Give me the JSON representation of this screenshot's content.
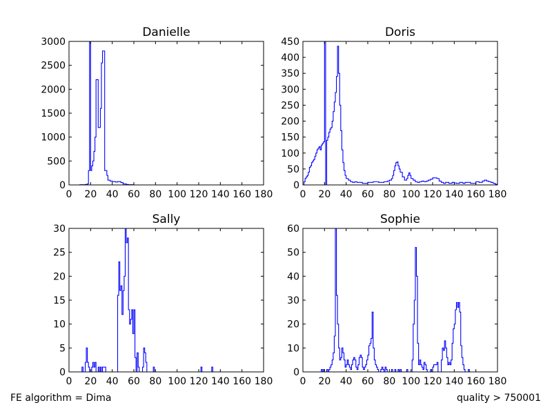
{
  "footer": {
    "left": "FE algorithm = Dima",
    "right": "quality > 750001"
  },
  "colors": {
    "series": "#0000ff",
    "axes": "#000000",
    "background": "#ffffff"
  },
  "chart_data": [
    {
      "type": "histogram",
      "title": "Danielle",
      "xlim": [
        0,
        180
      ],
      "ylim": [
        0,
        3000
      ],
      "xticks": [
        0,
        20,
        40,
        60,
        80,
        100,
        120,
        140,
        160,
        180
      ],
      "yticks": [
        0,
        500,
        1000,
        1500,
        2000,
        2500,
        3000
      ],
      "grid": false,
      "step": 1,
      "points": [
        [
          0,
          0
        ],
        [
          10,
          5
        ],
        [
          15,
          10
        ],
        [
          17,
          20
        ],
        [
          18,
          300
        ],
        [
          19,
          3000
        ],
        [
          20,
          300
        ],
        [
          21,
          400
        ],
        [
          22,
          500
        ],
        [
          23,
          700
        ],
        [
          24,
          1000
        ],
        [
          25,
          2200
        ],
        [
          26,
          2200
        ],
        [
          27,
          1200
        ],
        [
          28,
          1200
        ],
        [
          29,
          1600
        ],
        [
          30,
          2550
        ],
        [
          31,
          2800
        ],
        [
          32,
          2800
        ],
        [
          33,
          300
        ],
        [
          35,
          200
        ],
        [
          36,
          100
        ],
        [
          38,
          80
        ],
        [
          40,
          70
        ],
        [
          43,
          60
        ],
        [
          45,
          70
        ],
        [
          48,
          50
        ],
        [
          50,
          20
        ],
        [
          53,
          10
        ],
        [
          55,
          5
        ],
        [
          60,
          0
        ]
      ]
    },
    {
      "type": "histogram",
      "title": "Doris",
      "xlim": [
        0,
        180
      ],
      "ylim": [
        0,
        450
      ],
      "xticks": [
        0,
        20,
        40,
        60,
        80,
        100,
        120,
        140,
        160,
        180
      ],
      "yticks": [
        0,
        50,
        100,
        150,
        200,
        250,
        300,
        350,
        400,
        450
      ],
      "grid": false,
      "step": 1,
      "points": [
        [
          0,
          0
        ],
        [
          1,
          10
        ],
        [
          2,
          20
        ],
        [
          3,
          25
        ],
        [
          4,
          30
        ],
        [
          5,
          40
        ],
        [
          6,
          55
        ],
        [
          7,
          60
        ],
        [
          8,
          70
        ],
        [
          9,
          75
        ],
        [
          10,
          80
        ],
        [
          11,
          90
        ],
        [
          12,
          100
        ],
        [
          13,
          110
        ],
        [
          14,
          115
        ],
        [
          15,
          120
        ],
        [
          16,
          110
        ],
        [
          17,
          125
        ],
        [
          18,
          130
        ],
        [
          19,
          135
        ],
        [
          20,
          450
        ],
        [
          21,
          0
        ],
        [
          22,
          140
        ],
        [
          23,
          150
        ],
        [
          24,
          165
        ],
        [
          25,
          175
        ],
        [
          26,
          180
        ],
        [
          27,
          200
        ],
        [
          28,
          230
        ],
        [
          29,
          260
        ],
        [
          30,
          290
        ],
        [
          31,
          340
        ],
        [
          32,
          435
        ],
        [
          33,
          350
        ],
        [
          34,
          250
        ],
        [
          35,
          170
        ],
        [
          36,
          110
        ],
        [
          37,
          70
        ],
        [
          38,
          45
        ],
        [
          39,
          30
        ],
        [
          40,
          20
        ],
        [
          42,
          15
        ],
        [
          44,
          10
        ],
        [
          46,
          8
        ],
        [
          48,
          10
        ],
        [
          50,
          8
        ],
        [
          55,
          5
        ],
        [
          60,
          8
        ],
        [
          65,
          10
        ],
        [
          70,
          8
        ],
        [
          75,
          10
        ],
        [
          78,
          12
        ],
        [
          80,
          15
        ],
        [
          82,
          20
        ],
        [
          83,
          30
        ],
        [
          84,
          45
        ],
        [
          85,
          60
        ],
        [
          86,
          70
        ],
        [
          87,
          72
        ],
        [
          88,
          60
        ],
        [
          89,
          50
        ],
        [
          90,
          40
        ],
        [
          92,
          25
        ],
        [
          94,
          15
        ],
        [
          96,
          20
        ],
        [
          97,
          30
        ],
        [
          98,
          38
        ],
        [
          99,
          30
        ],
        [
          100,
          20
        ],
        [
          102,
          15
        ],
        [
          104,
          10
        ],
        [
          106,
          8
        ],
        [
          108,
          10
        ],
        [
          110,
          12
        ],
        [
          112,
          10
        ],
        [
          114,
          12
        ],
        [
          116,
          15
        ],
        [
          118,
          18
        ],
        [
          120,
          22
        ],
        [
          122,
          22
        ],
        [
          124,
          20
        ],
        [
          126,
          12
        ],
        [
          128,
          8
        ],
        [
          130,
          5
        ],
        [
          132,
          8
        ],
        [
          135,
          5
        ],
        [
          138,
          8
        ],
        [
          140,
          6
        ],
        [
          142,
          5
        ],
        [
          145,
          8
        ],
        [
          148,
          5
        ],
        [
          150,
          8
        ],
        [
          155,
          5
        ],
        [
          160,
          10
        ],
        [
          163,
          8
        ],
        [
          166,
          12
        ],
        [
          168,
          15
        ],
        [
          170,
          12
        ],
        [
          172,
          10
        ],
        [
          174,
          8
        ],
        [
          176,
          5
        ],
        [
          178,
          2
        ],
        [
          180,
          0
        ]
      ]
    },
    {
      "type": "histogram",
      "title": "Sally",
      "xlim": [
        0,
        180
      ],
      "ylim": [
        0,
        30
      ],
      "xticks": [
        0,
        20,
        40,
        60,
        80,
        100,
        120,
        140,
        160,
        180
      ],
      "yticks": [
        0,
        5,
        10,
        15,
        20,
        25,
        30
      ],
      "grid": false,
      "step": 1,
      "points": [
        [
          0,
          0
        ],
        [
          12,
          1
        ],
        [
          13,
          0
        ],
        [
          15,
          2
        ],
        [
          16,
          5
        ],
        [
          17,
          2
        ],
        [
          18,
          1
        ],
        [
          19,
          0
        ],
        [
          21,
          1
        ],
        [
          22,
          2
        ],
        [
          23,
          1
        ],
        [
          24,
          2
        ],
        [
          25,
          0
        ],
        [
          27,
          1
        ],
        [
          28,
          0
        ],
        [
          29,
          1
        ],
        [
          30,
          0
        ],
        [
          31,
          1
        ],
        [
          34,
          0
        ],
        [
          45,
          16
        ],
        [
          46,
          23
        ],
        [
          47,
          17
        ],
        [
          48,
          18
        ],
        [
          49,
          12
        ],
        [
          50,
          17
        ],
        [
          51,
          20
        ],
        [
          52,
          30
        ],
        [
          53,
          27
        ],
        [
          54,
          28
        ],
        [
          55,
          13
        ],
        [
          56,
          10
        ],
        [
          57,
          11
        ],
        [
          58,
          13
        ],
        [
          59,
          8
        ],
        [
          60,
          13
        ],
        [
          61,
          3
        ],
        [
          62,
          0
        ],
        [
          63,
          4
        ],
        [
          64,
          1
        ],
        [
          65,
          0
        ],
        [
          68,
          1
        ],
        [
          69,
          5
        ],
        [
          70,
          4
        ],
        [
          71,
          2
        ],
        [
          72,
          0
        ],
        [
          78,
          1
        ],
        [
          79,
          0
        ],
        [
          122,
          1
        ],
        [
          123,
          0
        ],
        [
          132,
          1
        ],
        [
          133,
          0
        ]
      ]
    },
    {
      "type": "histogram",
      "title": "Sophie",
      "xlim": [
        0,
        180
      ],
      "ylim": [
        0,
        60
      ],
      "xticks": [
        0,
        20,
        40,
        60,
        80,
        100,
        120,
        140,
        160,
        180
      ],
      "yticks": [
        0,
        10,
        20,
        30,
        40,
        50,
        60
      ],
      "grid": false,
      "step": 1,
      "points": [
        [
          0,
          0
        ],
        [
          17,
          1
        ],
        [
          18,
          0
        ],
        [
          19,
          1
        ],
        [
          20,
          0
        ],
        [
          22,
          1
        ],
        [
          23,
          0
        ],
        [
          24,
          1
        ],
        [
          25,
          2
        ],
        [
          26,
          3
        ],
        [
          27,
          5
        ],
        [
          28,
          8
        ],
        [
          29,
          15
        ],
        [
          30,
          60
        ],
        [
          31,
          32
        ],
        [
          32,
          20
        ],
        [
          33,
          10
        ],
        [
          34,
          5
        ],
        [
          35,
          6
        ],
        [
          36,
          10
        ],
        [
          37,
          8
        ],
        [
          38,
          5
        ],
        [
          39,
          2
        ],
        [
          40,
          3
        ],
        [
          41,
          5
        ],
        [
          42,
          3
        ],
        [
          43,
          2
        ],
        [
          44,
          1
        ],
        [
          45,
          3
        ],
        [
          46,
          5
        ],
        [
          47,
          6
        ],
        [
          48,
          5
        ],
        [
          49,
          2
        ],
        [
          50,
          1
        ],
        [
          51,
          3
        ],
        [
          52,
          6
        ],
        [
          53,
          7
        ],
        [
          54,
          6
        ],
        [
          55,
          2
        ],
        [
          56,
          1
        ],
        [
          57,
          2
        ],
        [
          58,
          3
        ],
        [
          59,
          5
        ],
        [
          60,
          7
        ],
        [
          61,
          11
        ],
        [
          62,
          12
        ],
        [
          63,
          14
        ],
        [
          64,
          25
        ],
        [
          65,
          10
        ],
        [
          66,
          5
        ],
        [
          67,
          3
        ],
        [
          68,
          2
        ],
        [
          69,
          1
        ],
        [
          70,
          0
        ],
        [
          72,
          1
        ],
        [
          73,
          2
        ],
        [
          74,
          1
        ],
        [
          75,
          0
        ],
        [
          76,
          2
        ],
        [
          77,
          1
        ],
        [
          78,
          0
        ],
        [
          82,
          1
        ],
        [
          83,
          0
        ],
        [
          85,
          1
        ],
        [
          86,
          0
        ],
        [
          88,
          1
        ],
        [
          89,
          0
        ],
        [
          90,
          1
        ],
        [
          91,
          0
        ],
        [
          96,
          1
        ],
        [
          97,
          0
        ],
        [
          101,
          5
        ],
        [
          102,
          20
        ],
        [
          103,
          30
        ],
        [
          104,
          52
        ],
        [
          105,
          40
        ],
        [
          106,
          12
        ],
        [
          107,
          3
        ],
        [
          108,
          5
        ],
        [
          109,
          3
        ],
        [
          110,
          2
        ],
        [
          111,
          1
        ],
        [
          112,
          4
        ],
        [
          113,
          3
        ],
        [
          114,
          1
        ],
        [
          115,
          0
        ],
        [
          118,
          1
        ],
        [
          119,
          0
        ],
        [
          120,
          2
        ],
        [
          121,
          3
        ],
        [
          122,
          3
        ],
        [
          124,
          4
        ],
        [
          125,
          0
        ],
        [
          128,
          5
        ],
        [
          129,
          10
        ],
        [
          130,
          9
        ],
        [
          131,
          13
        ],
        [
          132,
          10
        ],
        [
          133,
          6
        ],
        [
          134,
          3
        ],
        [
          135,
          4
        ],
        [
          136,
          3
        ],
        [
          137,
          5
        ],
        [
          138,
          12
        ],
        [
          139,
          18
        ],
        [
          140,
          20
        ],
        [
          141,
          26
        ],
        [
          142,
          29
        ],
        [
          143,
          27
        ],
        [
          144,
          29
        ],
        [
          145,
          25
        ],
        [
          146,
          11
        ],
        [
          147,
          6
        ],
        [
          148,
          3
        ],
        [
          149,
          1
        ],
        [
          150,
          0
        ],
        [
          153,
          1
        ],
        [
          154,
          0
        ]
      ]
    }
  ]
}
